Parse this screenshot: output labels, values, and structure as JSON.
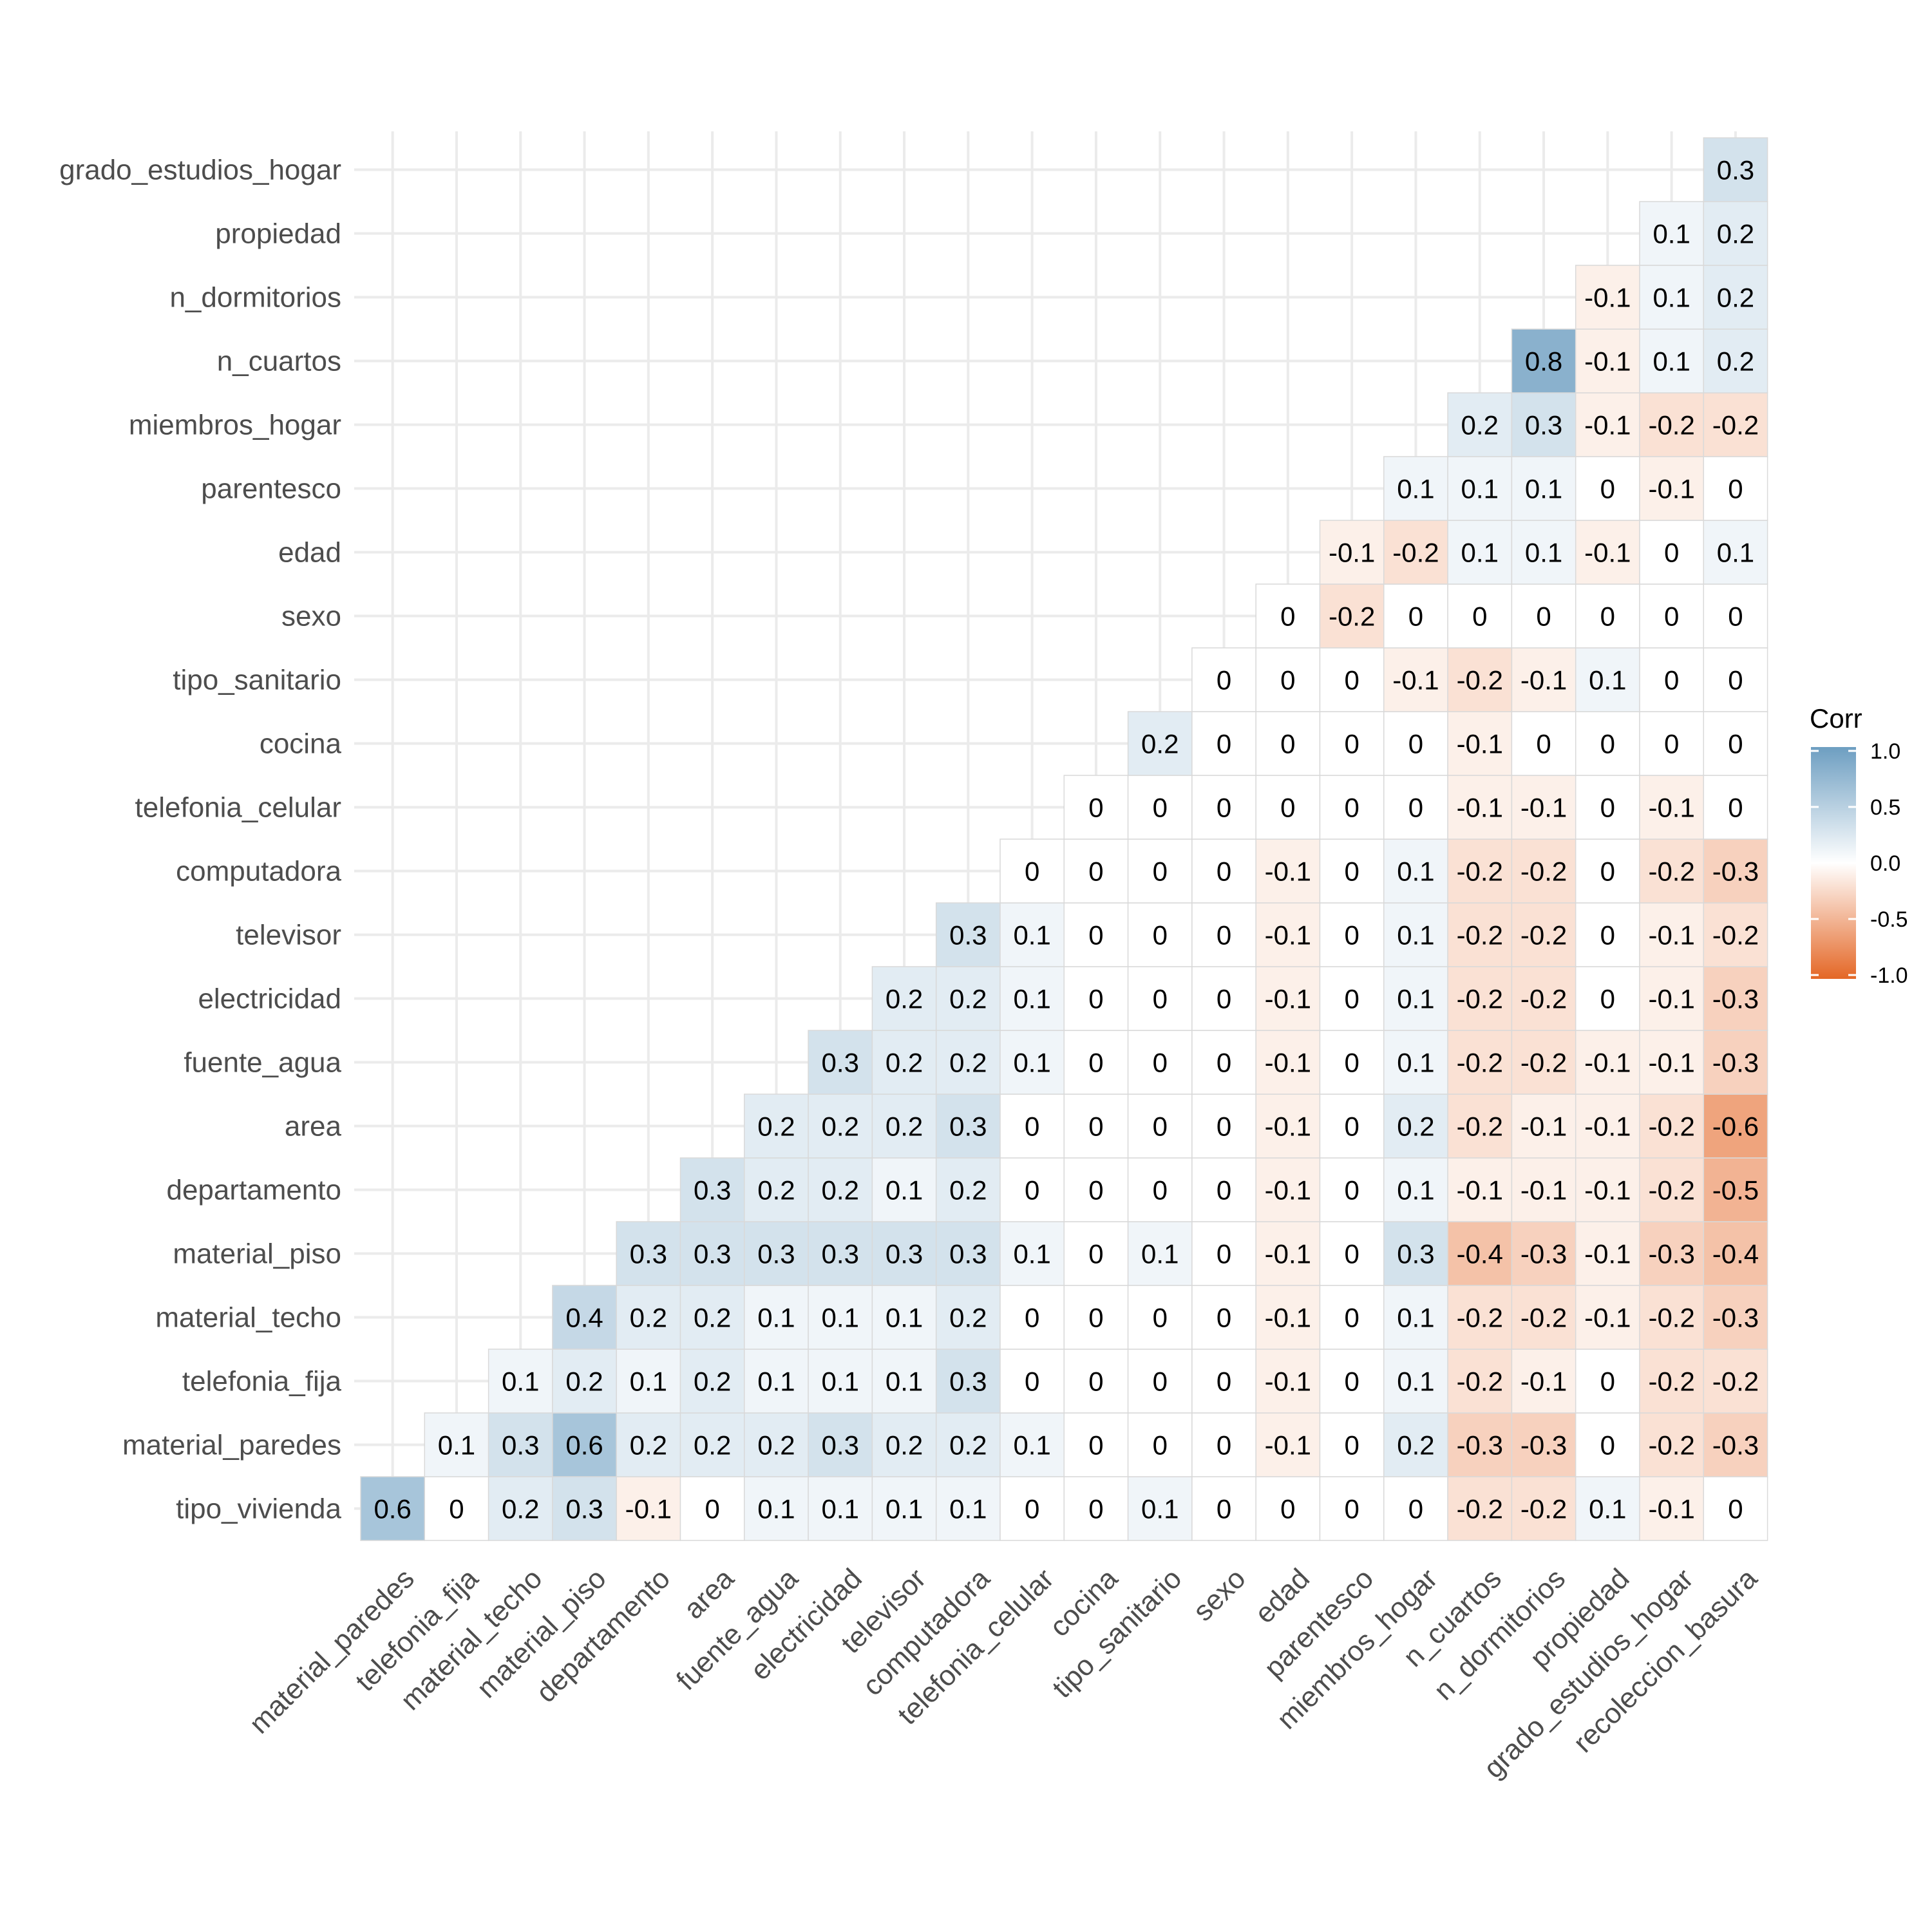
{
  "chart_data": {
    "type": "heatmap",
    "title": "",
    "xlabel": "",
    "ylabel": "",
    "x_categories": [
      "material_paredes",
      "telefonia_fija",
      "material_techo",
      "material_piso",
      "departamento",
      "area",
      "fuente_agua",
      "electricidad",
      "televisor",
      "computadora",
      "telefonia_celular",
      "cocina",
      "tipo_sanitario",
      "sexo",
      "edad",
      "parentesco",
      "miembros_hogar",
      "n_cuartos",
      "n_dormitorios",
      "propiedad",
      "grado_estudios_hogar",
      "recoleccion_basura"
    ],
    "y_categories": [
      "tipo_vivienda",
      "material_paredes",
      "telefonia_fija",
      "material_techo",
      "material_piso",
      "departamento",
      "area",
      "fuente_agua",
      "electricidad",
      "televisor",
      "computadora",
      "telefonia_celular",
      "cocina",
      "tipo_sanitario",
      "sexo",
      "edad",
      "parentesco",
      "miembros_hogar",
      "n_cuartos",
      "n_dormitorios",
      "propiedad",
      "grado_estudios_hogar"
    ],
    "values": [
      [
        0.6,
        0,
        0.2,
        0.3,
        -0.1,
        0,
        0.1,
        0.1,
        0.1,
        0.1,
        0,
        0,
        0.1,
        0,
        0,
        0,
        0,
        -0.2,
        -0.2,
        0.1,
        -0.1,
        0
      ],
      [
        0.1,
        0.3,
        0.6,
        0.2,
        0.2,
        0.2,
        0.3,
        0.2,
        0.2,
        0.1,
        0,
        0,
        0,
        -0.1,
        0,
        0.2,
        -0.3,
        -0.3,
        0,
        -0.2,
        -0.3
      ],
      [
        0.1,
        0.2,
        0.1,
        0.2,
        0.1,
        0.1,
        0.1,
        0.3,
        0,
        0,
        0,
        0,
        -0.1,
        0,
        0.1,
        -0.2,
        -0.1,
        0,
        -0.2,
        -0.2
      ],
      [
        0.4,
        0.2,
        0.2,
        0.1,
        0.1,
        0.1,
        0.2,
        0,
        0,
        0,
        0,
        -0.1,
        0,
        0.1,
        -0.2,
        -0.2,
        -0.1,
        -0.2,
        -0.3
      ],
      [
        0.3,
        0.3,
        0.3,
        0.3,
        0.3,
        0.3,
        0.1,
        0,
        0.1,
        0,
        -0.1,
        0,
        0.3,
        -0.4,
        -0.3,
        -0.1,
        -0.3,
        -0.4
      ],
      [
        0.3,
        0.2,
        0.2,
        0.1,
        0.2,
        0,
        0,
        0,
        0,
        -0.1,
        0,
        0.1,
        -0.1,
        -0.1,
        -0.1,
        -0.2,
        -0.5
      ],
      [
        0.2,
        0.2,
        0.2,
        0.3,
        0,
        0,
        0,
        0,
        -0.1,
        0,
        0.2,
        -0.2,
        -0.1,
        -0.1,
        -0.2,
        -0.6
      ],
      [
        0.3,
        0.2,
        0.2,
        0.1,
        0,
        0,
        0,
        -0.1,
        0,
        0.1,
        -0.2,
        -0.2,
        -0.1,
        -0.1,
        -0.3
      ],
      [
        0.2,
        0.2,
        0.1,
        0,
        0,
        0,
        -0.1,
        0,
        0.1,
        -0.2,
        -0.2,
        0,
        -0.1,
        -0.3
      ],
      [
        0.3,
        0.1,
        0,
        0,
        0,
        -0.1,
        0,
        0.1,
        -0.2,
        -0.2,
        0,
        -0.1,
        -0.2
      ],
      [
        0,
        0,
        0,
        0,
        -0.1,
        0,
        0.1,
        -0.2,
        -0.2,
        0,
        -0.2,
        -0.3
      ],
      [
        0,
        0,
        0,
        0,
        0,
        0,
        -0.1,
        -0.1,
        0,
        -0.1,
        0
      ],
      [
        0.2,
        0,
        0,
        0,
        0,
        -0.1,
        0,
        0,
        0,
        0
      ],
      [
        0,
        0,
        0,
        -0.1,
        -0.2,
        -0.1,
        0.1,
        0,
        0
      ],
      [
        0,
        -0.2,
        0,
        0,
        0,
        0,
        0,
        0
      ],
      [
        -0.1,
        -0.2,
        0.1,
        0.1,
        -0.1,
        0,
        0.1
      ],
      [
        0.1,
        0.1,
        0.1,
        0,
        -0.1,
        0
      ],
      [
        0.2,
        0.3,
        -0.1,
        -0.2,
        -0.2
      ],
      [
        0.8,
        -0.1,
        0.1,
        0.2
      ],
      [
        -0.1,
        0.1,
        0.2
      ],
      [
        0.1,
        0.2
      ],
      [
        0.3
      ]
    ],
    "values_note": "row i (y_categories[i]) holds correlations with x_categories[i .. end]",
    "color_low": "#E46726",
    "color_mid": "#FFFFFF",
    "color_high": "#6D9EC1",
    "legend": {
      "title": "Corr",
      "ticks": [
        "1.0",
        "0.5",
        "0.0",
        "-0.5",
        "-1.0"
      ],
      "placement": "right"
    },
    "grid": true
  }
}
